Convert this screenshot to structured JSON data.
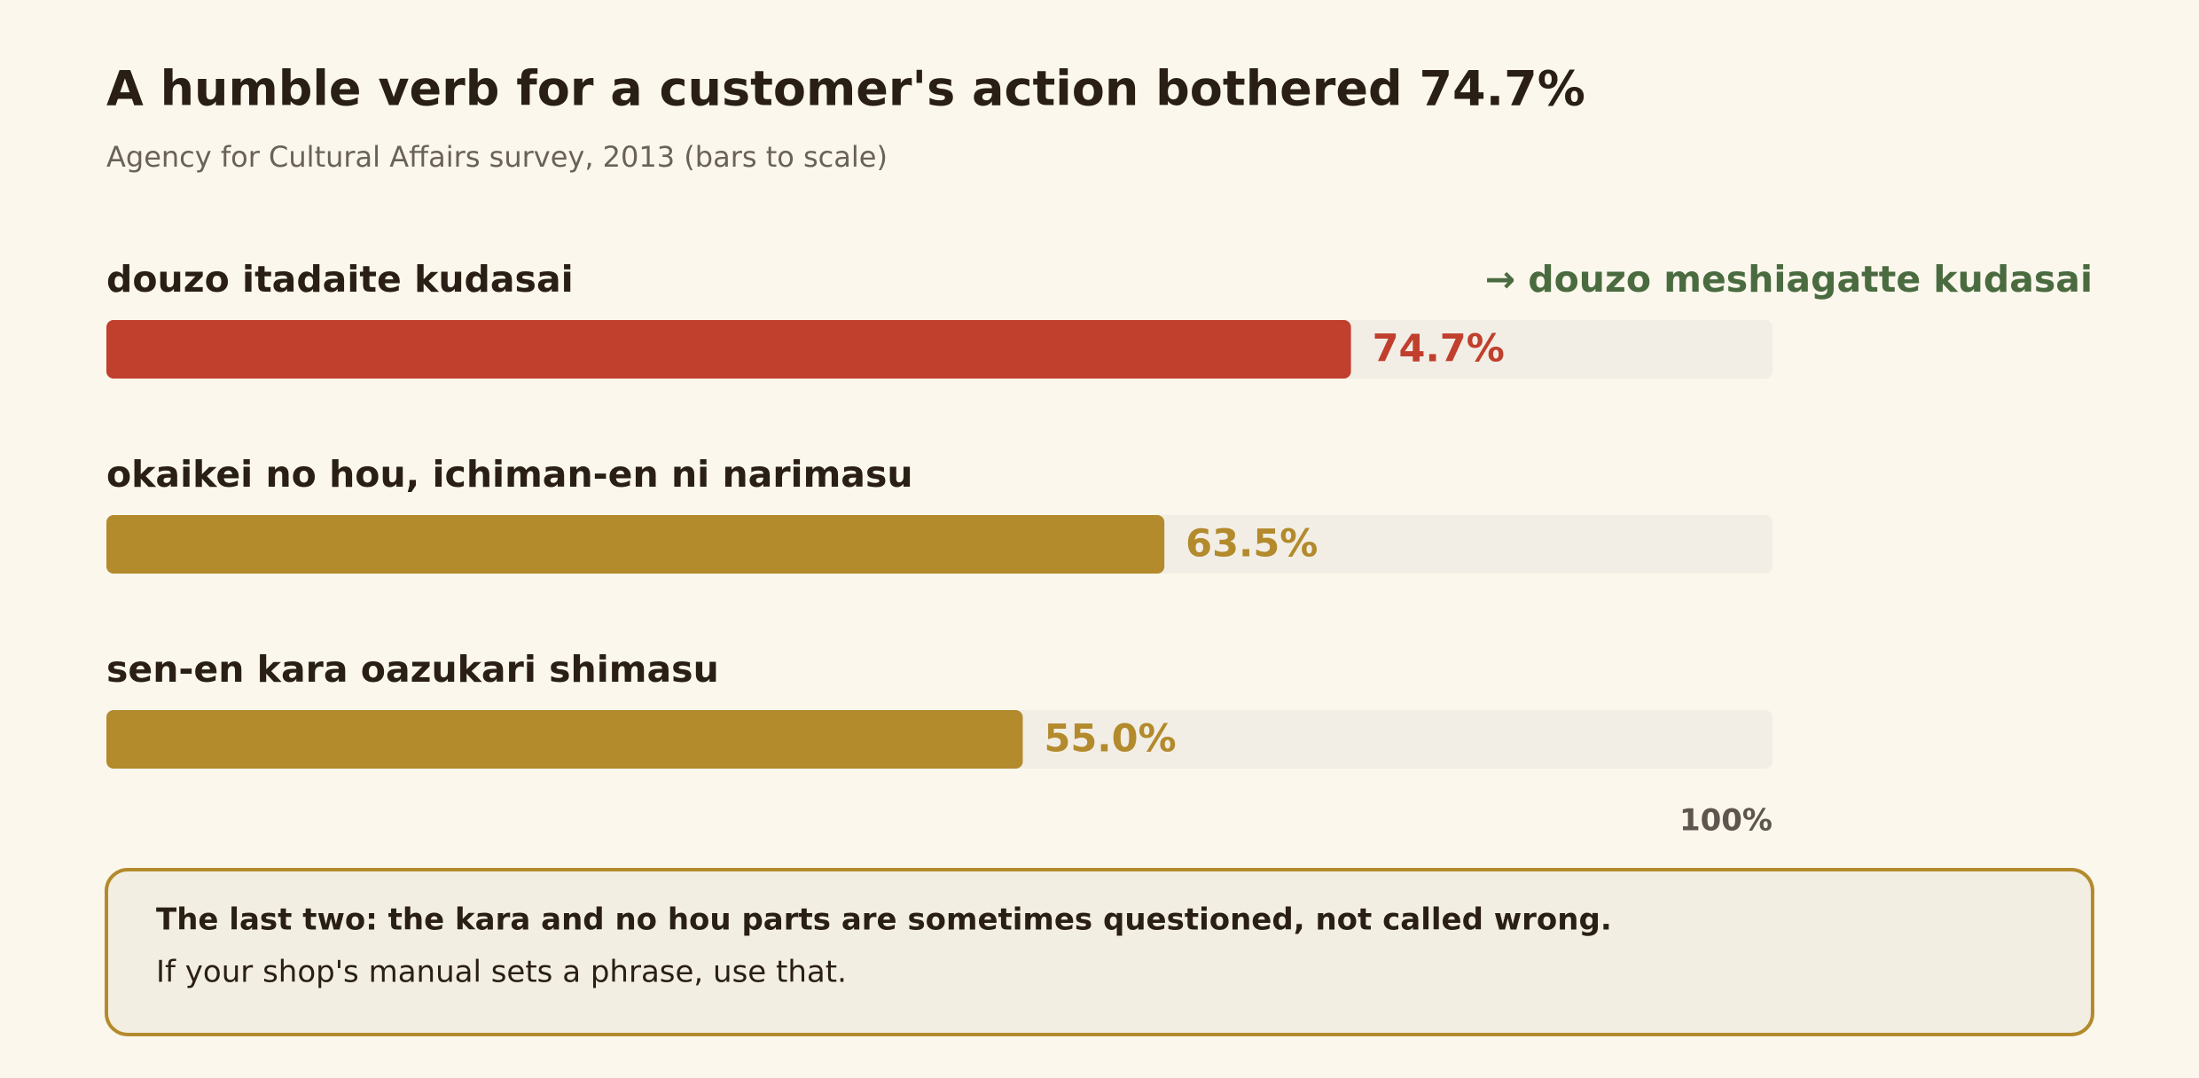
{
  "chart_data": {
    "type": "bar",
    "orientation": "horizontal",
    "title": "A humble verb for a customer's action bothered 74.7%",
    "subtitle": "Agency for Cultural Affairs survey, 2013 (bars to scale)",
    "categories": [
      "douzo itadaite kudasai",
      "okaikei no hou, ichiman-en ni narimasu",
      "sen-en kara oazukari shimasu"
    ],
    "values": [
      74.7,
      63.5,
      55.0
    ],
    "value_labels": [
      "74.7%",
      "63.5%",
      "55.0%"
    ],
    "colors": [
      "#c13f2d",
      "#b38a2c",
      "#b38a2c"
    ],
    "xlim": [
      0,
      100
    ],
    "xticks": [
      {
        "value": 100,
        "label": "100%"
      }
    ],
    "annotation": "→ douzo meshiagatte kudasai",
    "annotation_color": "#4a6b3f"
  },
  "note": {
    "title": "The last two: the kara and no hou parts are sometimes questioned, not called wrong.",
    "text": "If your shop's manual sets a phrase, use that."
  }
}
